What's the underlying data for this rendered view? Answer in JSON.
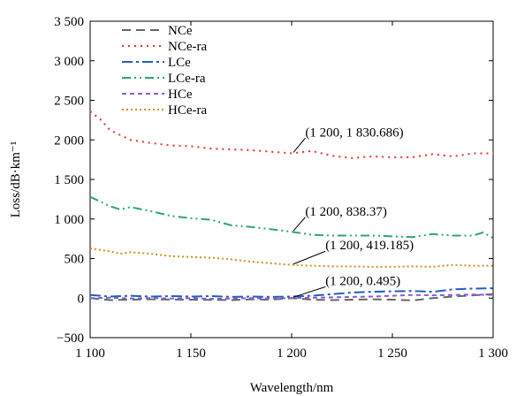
{
  "chart_data": {
    "type": "line",
    "xlabel": "Wavelength/nm",
    "ylabel": "Loss/dB·km⁻¹",
    "xlim": [
      1100,
      1300
    ],
    "ylim": [
      -500,
      3500
    ],
    "x_ticks": [
      1100,
      1150,
      1200,
      1250,
      1300
    ],
    "x_tick_labels": [
      "1 100",
      "1 150",
      "1 200",
      "1 250",
      "1 300"
    ],
    "y_ticks": [
      -500,
      0,
      500,
      1000,
      1500,
      2000,
      2500,
      3000,
      3500
    ],
    "y_tick_labels": [
      "−500",
      "0",
      "500",
      "1 000",
      "1 500",
      "2 000",
      "2 500",
      "3 000",
      "3 500"
    ],
    "legend_position": "top-left",
    "series": [
      {
        "name": "NCe",
        "color": "#666666",
        "dash": "10,6",
        "x": [
          1100,
          1110,
          1120,
          1130,
          1140,
          1150,
          1160,
          1170,
          1180,
          1190,
          1200,
          1210,
          1220,
          1230,
          1240,
          1250,
          1260,
          1270,
          1280,
          1290,
          1300
        ],
        "y": [
          0,
          -25,
          -20,
          -15,
          -18,
          -20,
          -22,
          -25,
          -15,
          -20,
          0,
          -20,
          -25,
          -20,
          -15,
          -20,
          -30,
          0,
          20,
          35,
          50
        ]
      },
      {
        "name": "NCe-ra",
        "color": "#e8312b",
        "dash": "2,5",
        "x": [
          1100,
          1105,
          1110,
          1120,
          1130,
          1140,
          1150,
          1160,
          1170,
          1180,
          1190,
          1200,
          1210,
          1220,
          1230,
          1240,
          1250,
          1260,
          1270,
          1280,
          1290,
          1300
        ],
        "y": [
          2360,
          2260,
          2120,
          2000,
          1960,
          1930,
          1920,
          1890,
          1880,
          1870,
          1850,
          1830.686,
          1860,
          1800,
          1770,
          1790,
          1780,
          1780,
          1820,
          1790,
          1830,
          1830
        ]
      },
      {
        "name": "LCe",
        "color": "#1f5fbf",
        "dash": "12,4,3,4",
        "x": [
          1100,
          1110,
          1120,
          1130,
          1140,
          1150,
          1160,
          1170,
          1180,
          1190,
          1200,
          1210,
          1220,
          1230,
          1240,
          1250,
          1260,
          1270,
          1280,
          1290,
          1300
        ],
        "y": [
          40,
          20,
          30,
          20,
          25,
          20,
          25,
          15,
          20,
          15,
          20,
          30,
          50,
          70,
          80,
          85,
          90,
          80,
          110,
          120,
          125
        ]
      },
      {
        "name": "LCe-ra",
        "color": "#2aa57a",
        "dash": "10,4,2,4,2,4",
        "x": [
          1100,
          1110,
          1115,
          1120,
          1130,
          1140,
          1150,
          1160,
          1170,
          1180,
          1190,
          1200,
          1210,
          1220,
          1230,
          1240,
          1250,
          1260,
          1270,
          1280,
          1290,
          1295,
          1300
        ],
        "y": [
          1280,
          1160,
          1120,
          1150,
          1100,
          1040,
          1010,
          990,
          920,
          900,
          870,
          838.37,
          800,
          790,
          790,
          790,
          780,
          770,
          810,
          790,
          790,
          830,
          760
        ]
      },
      {
        "name": "HCe",
        "color": "#8a5ad6",
        "dash": "5,4",
        "x": [
          1100,
          1110,
          1120,
          1130,
          1140,
          1150,
          1160,
          1170,
          1180,
          1190,
          1200,
          1210,
          1220,
          1230,
          1240,
          1250,
          1260,
          1270,
          1280,
          1290,
          1300
        ],
        "y": [
          0,
          5,
          -5,
          0,
          -5,
          0,
          -10,
          -5,
          0,
          -5,
          0.495,
          5,
          10,
          15,
          20,
          30,
          40,
          35,
          40,
          45,
          40
        ]
      },
      {
        "name": "HCe-ra",
        "color": "#d2911e",
        "dash": "2,3",
        "x": [
          1100,
          1110,
          1115,
          1120,
          1130,
          1140,
          1150,
          1160,
          1170,
          1180,
          1190,
          1200,
          1210,
          1220,
          1230,
          1240,
          1250,
          1260,
          1270,
          1280,
          1290,
          1300
        ],
        "y": [
          630,
          590,
          560,
          580,
          560,
          530,
          520,
          510,
          490,
          460,
          440,
          419.185,
          410,
          400,
          400,
          395,
          395,
          400,
          395,
          420,
          410,
          410
        ]
      }
    ],
    "annotations": [
      {
        "text": "(1 200, 1 830.686)",
        "x": 1200,
        "y": 1830.686,
        "label_at": [
          1205,
          2000
        ]
      },
      {
        "text": "(1 200, 838.37)",
        "x": 1200,
        "y": 838.37,
        "label_at": [
          1205,
          1000
        ]
      },
      {
        "text": "(1 200, 419.185)",
        "x": 1200,
        "y": 419.185,
        "label_at": [
          1215,
          570
        ]
      },
      {
        "text": "(1 200, 0.495)",
        "x": 1200,
        "y": 0.495,
        "label_at": [
          1215,
          120
        ]
      }
    ]
  }
}
